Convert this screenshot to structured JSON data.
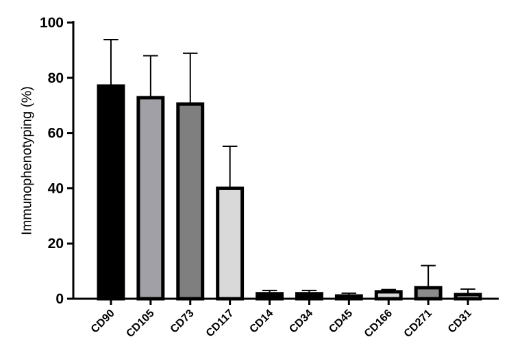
{
  "chart_data": {
    "type": "bar",
    "y_label": "Immunophenotyping (%)",
    "categories": [
      "CD90",
      "CD105",
      "CD73",
      "CD117",
      "CD14",
      "CD34",
      "CD45",
      "CD166",
      "CD271",
      "CD31"
    ],
    "values": [
      77,
      72.8,
      70.5,
      40,
      1.8,
      1.8,
      1,
      2.5,
      4,
      1.5
    ],
    "errors": [
      16.8,
      15.2,
      18.4,
      15.2,
      1.2,
      1.2,
      1,
      0.8,
      8,
      2
    ],
    "colors": [
      "#000000",
      "#a0a0a6",
      "#7f7f7f",
      "#d9d9d9",
      "#000000",
      "#000000",
      "#000000",
      "#d9d9d9",
      "#8c8c8c",
      "#cfcfcf"
    ],
    "ylim": [
      0,
      100
    ],
    "yticks": [
      0,
      20,
      40,
      60,
      80,
      100
    ]
  }
}
